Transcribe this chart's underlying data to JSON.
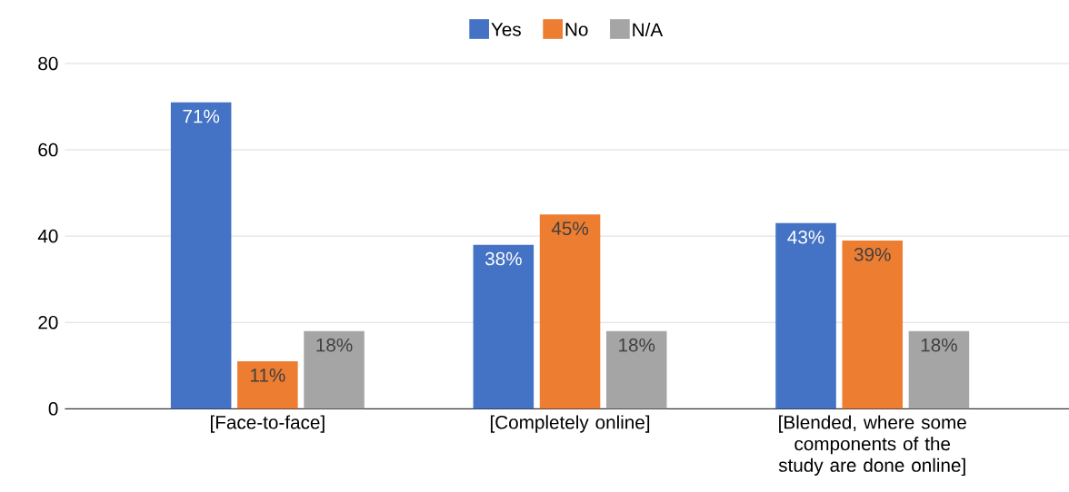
{
  "chart_data": {
    "type": "bar",
    "categories": [
      "[Face-to-face]",
      "[Completely online]",
      "[Blended, where some components of the study are done online]"
    ],
    "series": [
      {
        "name": "Yes",
        "color": "#4472c4",
        "values": [
          71,
          38,
          43
        ],
        "value_labels": [
          "71%",
          "38%",
          "43%"
        ]
      },
      {
        "name": "No",
        "color": "#ed7d31",
        "values": [
          11,
          45,
          39
        ],
        "value_labels": [
          "11%",
          "45%",
          "39%"
        ]
      },
      {
        "name": "N/A",
        "color": "#a5a5a5",
        "values": [
          18,
          18,
          18
        ],
        "value_labels": [
          "18%",
          "18%",
          "18%"
        ]
      }
    ],
    "ylim": [
      0,
      80
    ],
    "yticks": [
      0,
      20,
      40,
      60,
      80
    ],
    "grid": "y",
    "legend": "top"
  }
}
